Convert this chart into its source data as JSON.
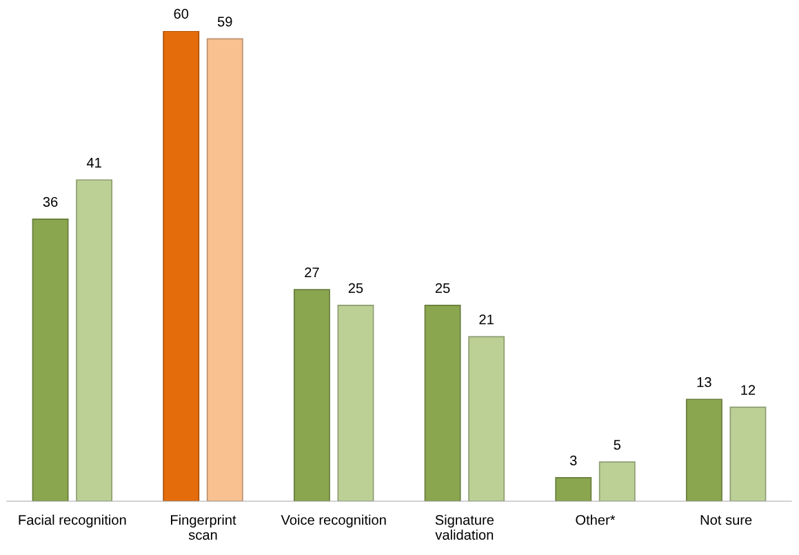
{
  "chart_data": {
    "type": "bar",
    "categories": [
      "Facial recognition",
      "Fingerprint\nscan",
      "Voice recognition",
      "Signature\nvalidation",
      "Other*",
      "Not sure"
    ],
    "series": [
      {
        "colors": [
          "#8aa64f",
          "#e46c0a",
          "#8aa64f",
          "#8aa64f",
          "#8aa64f",
          "#8aa64f"
        ],
        "values": [
          36,
          60,
          27,
          25,
          3,
          13
        ]
      },
      {
        "colors": [
          "#bcd096",
          "#f9c090",
          "#bcd096",
          "#bcd096",
          "#bcd096",
          "#bcd096"
        ],
        "values": [
          41,
          59,
          25,
          21,
          5,
          12
        ]
      }
    ],
    "data_labels": true,
    "grid": false
  }
}
